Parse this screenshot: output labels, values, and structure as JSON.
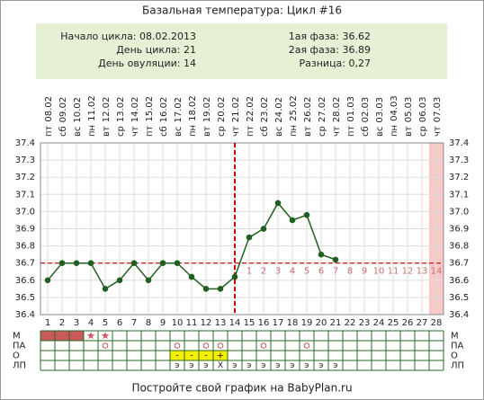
{
  "chart_data": {
    "type": "line",
    "title": "Базальная температура: Цикл #16",
    "info_left": [
      "Начало цикла: 08.02.2013",
      "День цикла: 21",
      "День овуляции: 14"
    ],
    "info_right": [
      "1ая фаза: 36.62",
      "2ая фаза: 36.89",
      "Разница: 0,27"
    ],
    "days": [
      1,
      2,
      3,
      4,
      5,
      6,
      7,
      8,
      9,
      10,
      11,
      12,
      13,
      14,
      15,
      16,
      17,
      18,
      19,
      20,
      21,
      22,
      23,
      24,
      25,
      26,
      27,
      28
    ],
    "weekdays": [
      "пт",
      "сб",
      "вс",
      "пн",
      "вт",
      "ср",
      "чт",
      "пт",
      "сб",
      "вс",
      "пн",
      "вт",
      "ср",
      "чт",
      "пт",
      "сб",
      "вс",
      "пн",
      "вт",
      "ср",
      "чт",
      "пт",
      "сб",
      "вс",
      "пн",
      "вт",
      "ср",
      "чт"
    ],
    "dates": [
      "08.02",
      "09.02",
      "10.02",
      "11.02",
      "12.02",
      "13.02",
      "14.02",
      "15.02",
      "16.02",
      "17.02",
      "18.02",
      "19.02",
      "20.02",
      "21.02",
      "22.02",
      "23.02",
      "24.02",
      "25.02",
      "26.02",
      "27.02",
      "28.02",
      "01.03",
      "02.03",
      "03.03",
      "04.03",
      "05.03",
      "06.03",
      "07.03"
    ],
    "series": [
      {
        "color": "#1f5f1f",
        "values": [
          36.6,
          36.7,
          36.7,
          36.7,
          36.55,
          36.6,
          36.7,
          36.6,
          36.7,
          36.7,
          36.62,
          36.55,
          36.55,
          36.62,
          36.85,
          36.9,
          37.05,
          36.95,
          36.98,
          36.75,
          36.72,
          null,
          null,
          null,
          null,
          null,
          null,
          null
        ]
      }
    ],
    "ylim": [
      36.4,
      37.4
    ],
    "yticks": [
      {
        "value": 36.4,
        "label": "36.4"
      },
      {
        "value": 36.5,
        "label": "36.5"
      },
      {
        "value": 36.6,
        "label": "36.6"
      },
      {
        "value": 36.7,
        "label": "36.7"
      },
      {
        "value": 36.8,
        "label": "36.8"
      },
      {
        "value": 36.9,
        "label": "36.9"
      },
      {
        "value": 37.0,
        "label": "37.0"
      },
      {
        "value": 37.1,
        "label": "37.1"
      },
      {
        "value": 37.2,
        "label": "37.2"
      },
      {
        "value": 37.3,
        "label": "37.3"
      },
      {
        "value": 37.4,
        "label": "37.4"
      }
    ],
    "grid": true,
    "coverline": 36.7,
    "ovulation_day": 14,
    "highlight_day": 28,
    "phase_days": [
      15,
      16,
      17,
      18,
      19,
      20,
      21,
      22,
      23,
      24,
      25,
      26,
      27,
      28
    ],
    "phase_numbers": [
      1,
      2,
      3,
      4,
      5,
      6,
      7,
      8,
      9,
      10,
      11,
      12,
      13,
      14
    ],
    "row_labels": [
      "М",
      "ПА",
      "О",
      "ЛП"
    ],
    "m_filled_days": [
      1,
      2,
      3
    ],
    "m_star_days": [
      4,
      5
    ],
    "pa_days": [
      5,
      10,
      12,
      13,
      16,
      19
    ],
    "o_cells": [
      {
        "day": 10,
        "text": "-"
      },
      {
        "day": 11,
        "text": "-"
      },
      {
        "day": 12,
        "text": "-"
      },
      {
        "day": 13,
        "text": "+"
      }
    ],
    "lp_cells": [
      {
        "day": 10,
        "text": "э"
      },
      {
        "day": 11,
        "text": "э"
      },
      {
        "day": 12,
        "text": "э"
      },
      {
        "day": 13,
        "text": "Х"
      },
      {
        "day": 14,
        "text": "э"
      },
      {
        "day": 15,
        "text": "э"
      },
      {
        "day": 16,
        "text": "э"
      },
      {
        "day": 17,
        "text": "э"
      },
      {
        "day": 18,
        "text": "э"
      },
      {
        "day": 19,
        "text": "э"
      },
      {
        "day": 20,
        "text": "э"
      },
      {
        "day": 21,
        "text": "э"
      }
    ],
    "footer": "Постройте свой график на BabyPlan.ru"
  }
}
